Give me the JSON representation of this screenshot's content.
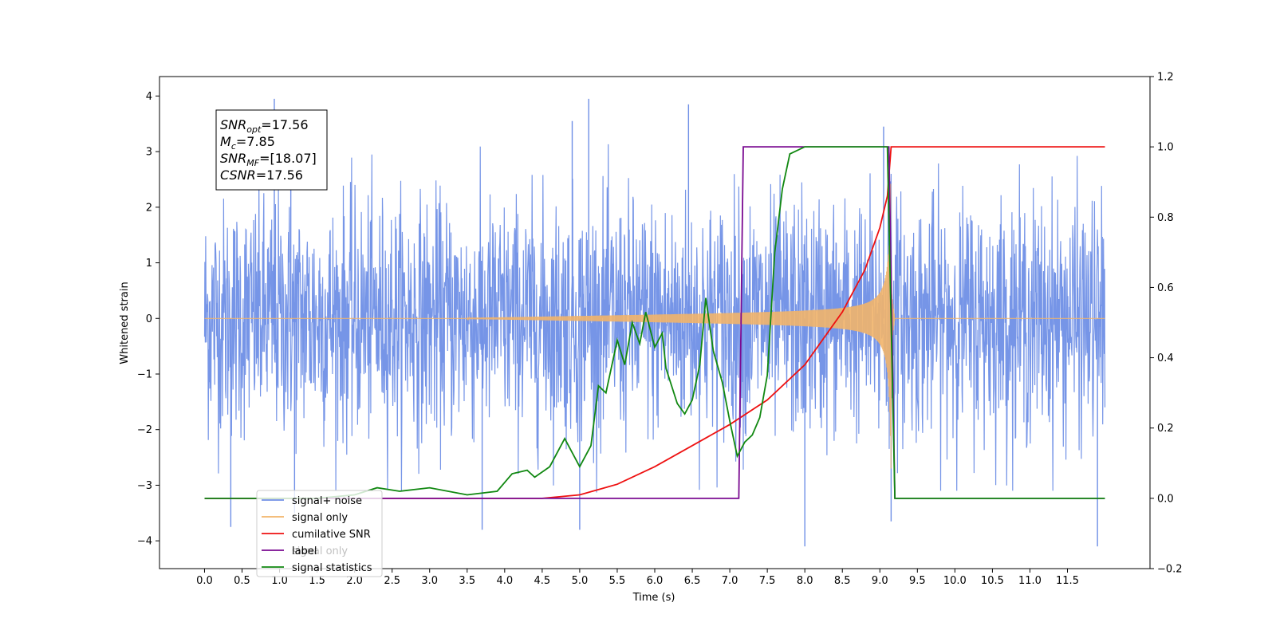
{
  "chart_data": {
    "type": "line",
    "title": "",
    "xlabel": "Time (s)",
    "ylabel": "Whitened strain",
    "y2label": "",
    "xlim": [
      -0.6,
      12.6
    ],
    "ylim": [
      -4.5,
      4.35
    ],
    "y2lim": [
      -0.2,
      1.2
    ],
    "x_ticks": [
      0.0,
      0.5,
      1.0,
      1.5,
      2.0,
      2.5,
      3.0,
      3.5,
      4.0,
      4.5,
      5.0,
      5.5,
      6.0,
      6.5,
      7.0,
      7.5,
      8.0,
      8.5,
      9.0,
      9.5,
      10.0,
      10.5,
      11.0,
      11.5
    ],
    "x_tick_labels": [
      "0.0",
      "0.5",
      "1.0",
      "1.5",
      "2.0",
      "2.5",
      "3.0",
      "3.5",
      "4.0",
      "4.5",
      "5.0",
      "5.5",
      "6.0",
      "6.5",
      "7.0",
      "7.5",
      "8.0",
      "8.5",
      "9.0",
      "9.5",
      "10.0",
      "10.5",
      "11.0",
      "11.5"
    ],
    "y_ticks": [
      -4,
      -3,
      -2,
      -1,
      0,
      1,
      2,
      3,
      4
    ],
    "y_tick_labels": [
      "−4",
      "−3",
      "−2",
      "−1",
      "0",
      "1",
      "2",
      "3",
      "4"
    ],
    "y2_ticks": [
      -0.2,
      0.0,
      0.2,
      0.4,
      0.6,
      0.8,
      1.0,
      1.2
    ],
    "y2_tick_labels": [
      "−0.2",
      "0.0",
      "0.2",
      "0.4",
      "0.6",
      "0.8",
      "1.0",
      "1.2"
    ],
    "grid": false,
    "legend_position": "lower-left",
    "stats_box": {
      "lines": [
        {
          "main": "SNR",
          "sub": "opt",
          "value": "=17.56"
        },
        {
          "main": "M",
          "sub": "c",
          "value": "=7.85"
        },
        {
          "main": "SNR",
          "sub": "MF",
          "value": "=[18.07]"
        },
        {
          "main": "CSNR",
          "sub": "",
          "value": "=17.56"
        }
      ]
    },
    "series": [
      {
        "name": "signal+ noise",
        "color": "#6f8fe6",
        "axis": "left",
        "style": "noise",
        "x_range": [
          0.0,
          12.0
        ],
        "envelope": 2.2,
        "extreme_peaks": [
          [
            0.93,
            3.95
          ],
          [
            1.15,
            3.7
          ],
          [
            4.9,
            3.55
          ],
          [
            5.12,
            3.95
          ],
          [
            6.45,
            3.85
          ],
          [
            9.05,
            3.45
          ],
          [
            0.35,
            -3.75
          ],
          [
            5.0,
            -3.8
          ],
          [
            8.0,
            -4.1
          ],
          [
            11.9,
            -4.1
          ],
          [
            1.2,
            -3.5
          ],
          [
            3.7,
            -3.8
          ],
          [
            9.15,
            -3.65
          ]
        ]
      },
      {
        "name": "signal only",
        "color": "#f2b46a",
        "axis": "left",
        "style": "chirp",
        "start": 3.5,
        "merger": 9.15,
        "peak_amplitude": 2.7
      },
      {
        "name": "cumilative SNR",
        "color": "#ee1111",
        "axis": "right",
        "points": [
          [
            0.0,
            0.0
          ],
          [
            4.0,
            0.0
          ],
          [
            4.5,
            0.0
          ],
          [
            5.0,
            0.01
          ],
          [
            5.5,
            0.04
          ],
          [
            6.0,
            0.09
          ],
          [
            6.5,
            0.15
          ],
          [
            7.0,
            0.21
          ],
          [
            7.5,
            0.28
          ],
          [
            8.0,
            0.38
          ],
          [
            8.5,
            0.53
          ],
          [
            8.8,
            0.65
          ],
          [
            9.0,
            0.77
          ],
          [
            9.1,
            0.86
          ],
          [
            9.15,
            1.0
          ],
          [
            12.0,
            1.0
          ]
        ]
      },
      {
        "name": "label",
        "color": "#7a0a91",
        "axis": "right",
        "points": [
          [
            0.0,
            0.0
          ],
          [
            7.12,
            0.0
          ],
          [
            7.18,
            1.0
          ],
          [
            9.12,
            1.0
          ],
          [
            9.2,
            0.0
          ],
          [
            12.0,
            0.0
          ]
        ]
      },
      {
        "name": "signal statistics",
        "color": "#118811",
        "axis": "right",
        "points": [
          [
            0.0,
            0.0
          ],
          [
            1.5,
            0.0
          ],
          [
            2.0,
            0.01
          ],
          [
            2.3,
            0.03
          ],
          [
            2.6,
            0.02
          ],
          [
            3.0,
            0.03
          ],
          [
            3.5,
            0.01
          ],
          [
            3.9,
            0.02
          ],
          [
            4.1,
            0.07
          ],
          [
            4.3,
            0.08
          ],
          [
            4.4,
            0.06
          ],
          [
            4.6,
            0.09
          ],
          [
            4.8,
            0.17
          ],
          [
            5.0,
            0.09
          ],
          [
            5.15,
            0.15
          ],
          [
            5.25,
            0.32
          ],
          [
            5.35,
            0.3
          ],
          [
            5.5,
            0.45
          ],
          [
            5.6,
            0.38
          ],
          [
            5.7,
            0.5
          ],
          [
            5.8,
            0.44
          ],
          [
            5.88,
            0.53
          ],
          [
            6.0,
            0.43
          ],
          [
            6.1,
            0.47
          ],
          [
            6.15,
            0.37
          ],
          [
            6.3,
            0.27
          ],
          [
            6.4,
            0.24
          ],
          [
            6.5,
            0.28
          ],
          [
            6.6,
            0.38
          ],
          [
            6.68,
            0.57
          ],
          [
            6.78,
            0.42
          ],
          [
            6.9,
            0.33
          ],
          [
            7.0,
            0.22
          ],
          [
            7.1,
            0.12
          ],
          [
            7.2,
            0.16
          ],
          [
            7.3,
            0.18
          ],
          [
            7.4,
            0.23
          ],
          [
            7.5,
            0.35
          ],
          [
            7.6,
            0.7
          ],
          [
            7.7,
            0.88
          ],
          [
            7.8,
            0.98
          ],
          [
            8.0,
            1.0
          ],
          [
            9.1,
            1.0
          ],
          [
            9.2,
            0.0
          ],
          [
            12.0,
            0.0
          ]
        ]
      }
    ],
    "legend_overlay_text": "signal only"
  }
}
